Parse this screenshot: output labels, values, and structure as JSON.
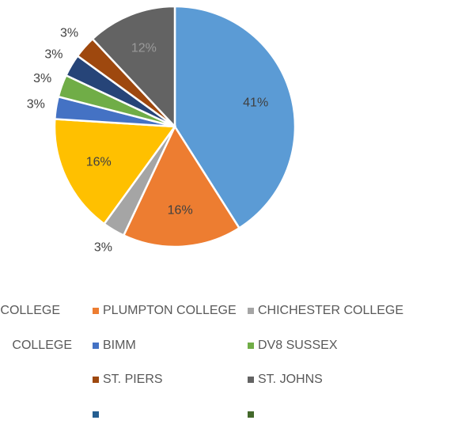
{
  "chart_data": {
    "type": "pie",
    "categories": [
      "COLLEGE",
      "PLUMPTON COLLEGE",
      "CHICHESTER COLLEGE",
      "COLLEGE",
      "BIMM",
      "DV8 SUSSEX",
      null,
      "ST. PIERS",
      "ST. JOHNS",
      null,
      null
    ],
    "values": [
      41,
      16,
      3,
      16,
      3,
      3,
      3,
      3,
      12,
      0,
      0
    ],
    "value_labels": [
      "41%",
      "16%",
      "3%",
      "16%",
      "3%",
      "3%",
      "3%",
      "3%",
      "12%",
      null,
      null
    ],
    "colors": [
      "#5b9bd5",
      "#ed7d31",
      "#a5a5a5",
      "#ffc000",
      "#4472c4",
      "#70ad47",
      "#264478",
      "#9e480e",
      "#636363",
      "#255e91",
      "#43682b"
    ]
  }
}
